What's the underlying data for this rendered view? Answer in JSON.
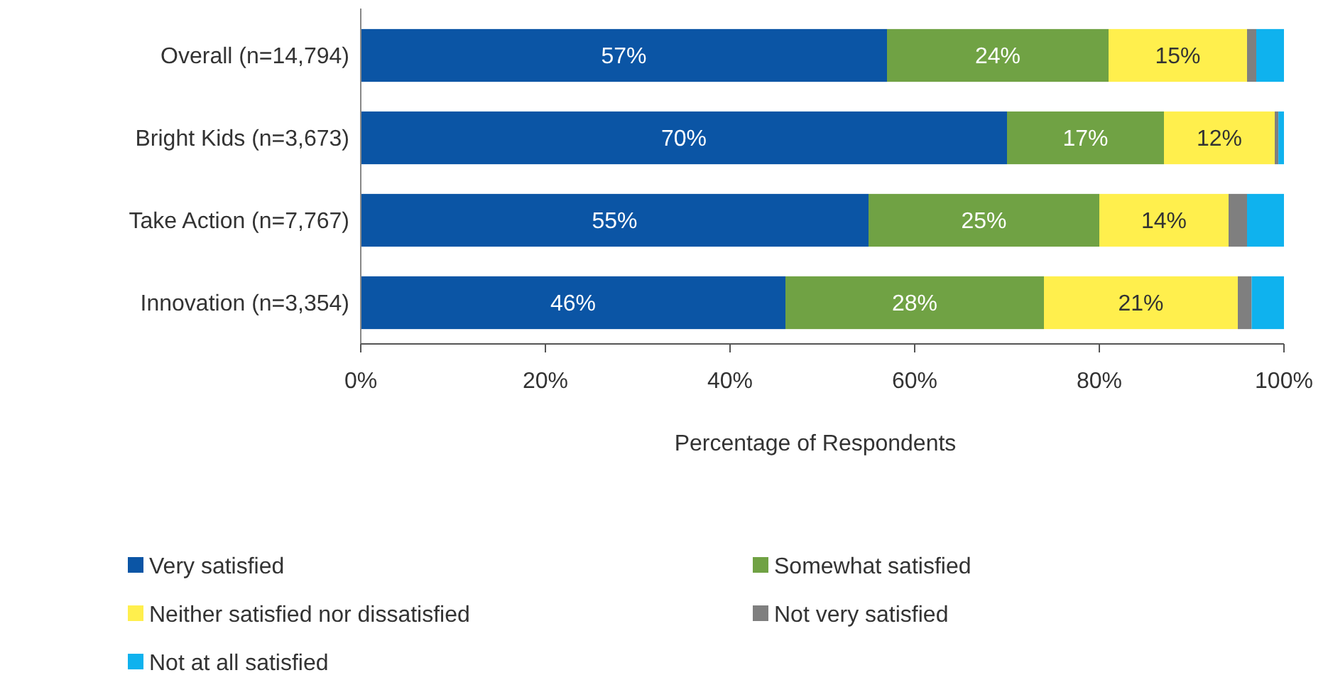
{
  "chart_data": {
    "type": "bar",
    "orientation": "horizontal",
    "stacked": true,
    "xlabel": "Percentage of Respondents",
    "categories": [
      "Overall (n=14,794)",
      "Bright Kids (n=3,673)",
      "Take Action (n=7,767)",
      "Innovation (n=3,354)"
    ],
    "series": [
      {
        "name": "Very satisfied",
        "color": "#0b55a5",
        "values": [
          57,
          70,
          55,
          46
        ],
        "value_labels": [
          "57%",
          "70%",
          "55%",
          "46%"
        ]
      },
      {
        "name": "Somewhat satisfied",
        "color": "#70a244",
        "values": [
          24,
          17,
          25,
          28
        ],
        "value_labels": [
          "24%",
          "17%",
          "25%",
          "28%"
        ]
      },
      {
        "name": "Neither satisfied nor dissatisfied",
        "color": "#ffef4d",
        "values": [
          15,
          12,
          14,
          21
        ],
        "value_labels": [
          "15%",
          "12%",
          "14%",
          "21%"
        ]
      },
      {
        "name": "Not very satisfied",
        "color": "#7f7f7f",
        "values": [
          1,
          0.4,
          2,
          1.5
        ]
      },
      {
        "name": "Not at all satisfied",
        "color": "#0fb2ee",
        "values": [
          3,
          0.6,
          4,
          3.5
        ]
      }
    ],
    "xlim": [
      0,
      100
    ],
    "xticks": [
      {
        "value": 0,
        "label": "0%"
      },
      {
        "value": 20,
        "label": "20%"
      },
      {
        "value": 40,
        "label": "40%"
      },
      {
        "value": 60,
        "label": "60%"
      },
      {
        "value": 80,
        "label": "80%"
      },
      {
        "value": 100,
        "label": "100%"
      }
    ],
    "grid": false,
    "legend": "bottom"
  }
}
